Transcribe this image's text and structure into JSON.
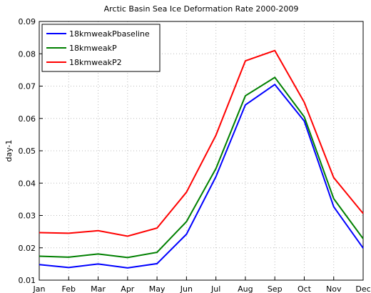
{
  "chart_data": {
    "type": "line",
    "title": "Arctic Basin Sea Ice Deformation Rate 2000-2009",
    "y_label": "day-1",
    "categories": [
      "Jan",
      "Feb",
      "Mar",
      "Apr",
      "May",
      "Jun",
      "Jul",
      "Aug",
      "Sep",
      "Oct",
      "Nov",
      "Dec"
    ],
    "series": [
      {
        "name": "18kmweakPbaseline",
        "color": "#0000ff",
        "values": [
          0.0148,
          0.0139,
          0.015,
          0.0138,
          0.0151,
          0.0242,
          0.042,
          0.0642,
          0.0705,
          0.0592,
          0.0327,
          0.0199
        ]
      },
      {
        "name": "18kmweakP",
        "color": "#008000",
        "values": [
          0.0174,
          0.0171,
          0.0181,
          0.017,
          0.0186,
          0.0281,
          0.0445,
          0.067,
          0.0727,
          0.0605,
          0.0352,
          0.0228
        ]
      },
      {
        "name": "18kmweakP2",
        "color": "#ff0000",
        "values": [
          0.0247,
          0.0245,
          0.0253,
          0.0236,
          0.0261,
          0.0372,
          0.0548,
          0.0778,
          0.081,
          0.065,
          0.0417,
          0.0306
        ]
      }
    ],
    "ylim": [
      0.01,
      0.09
    ],
    "yticks": [
      0.01,
      0.02,
      0.03,
      0.04,
      0.05,
      0.06,
      0.07,
      0.08,
      0.09
    ],
    "grid": true,
    "legend": "upper-left"
  }
}
